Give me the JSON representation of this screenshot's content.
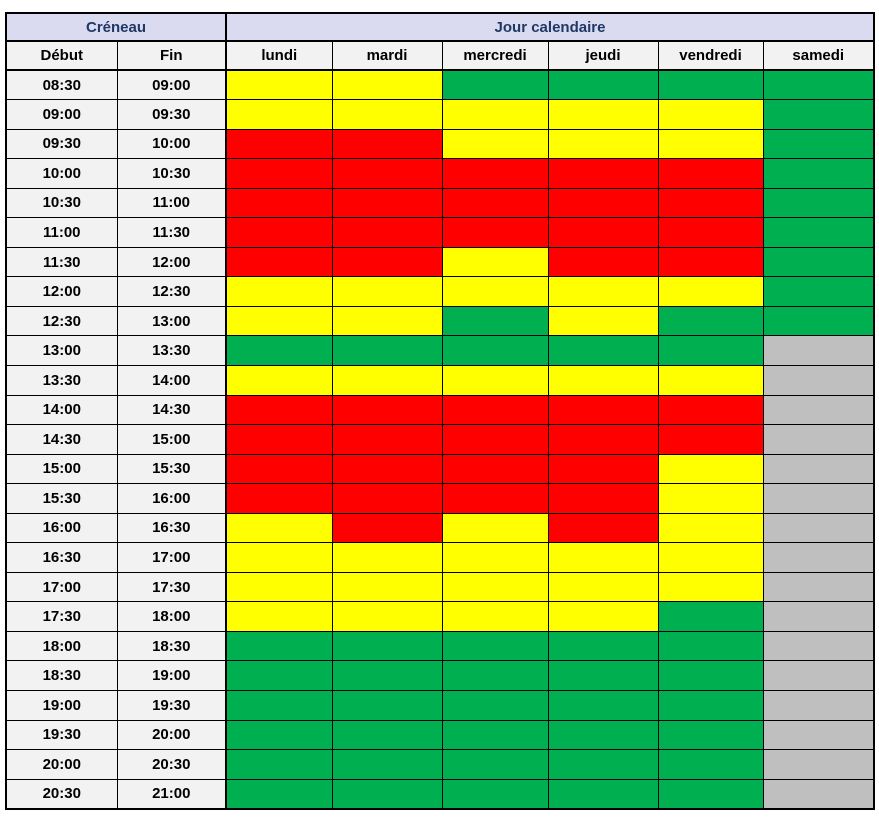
{
  "header": {
    "creneau": "Créneau",
    "jour_calendaire": "Jour calendaire",
    "debut": "Début",
    "fin": "Fin"
  },
  "chart_data": {
    "type": "heatmap",
    "title": "",
    "x_categories": [
      "lundi",
      "mardi",
      "mercredi",
      "jeudi",
      "vendredi",
      "samedi"
    ],
    "y_axis_columns": [
      "Début",
      "Fin"
    ],
    "legend_position": "none",
    "grid": true,
    "color_scale": {
      "red": "#FF0000",
      "yellow": "#FFFF00",
      "green": "#00B050",
      "gray": "#BFBFBF"
    },
    "rows": [
      {
        "debut": "08:30",
        "fin": "09:00",
        "values": [
          "yellow",
          "yellow",
          "green",
          "green",
          "green",
          "green"
        ]
      },
      {
        "debut": "09:00",
        "fin": "09:30",
        "values": [
          "yellow",
          "yellow",
          "yellow",
          "yellow",
          "yellow",
          "green"
        ]
      },
      {
        "debut": "09:30",
        "fin": "10:00",
        "values": [
          "red",
          "red",
          "yellow",
          "yellow",
          "yellow",
          "green"
        ]
      },
      {
        "debut": "10:00",
        "fin": "10:30",
        "values": [
          "red",
          "red",
          "red",
          "red",
          "red",
          "green"
        ]
      },
      {
        "debut": "10:30",
        "fin": "11:00",
        "values": [
          "red",
          "red",
          "red",
          "red",
          "red",
          "green"
        ]
      },
      {
        "debut": "11:00",
        "fin": "11:30",
        "values": [
          "red",
          "red",
          "red",
          "red",
          "red",
          "green"
        ]
      },
      {
        "debut": "11:30",
        "fin": "12:00",
        "values": [
          "red",
          "red",
          "yellow",
          "red",
          "red",
          "green"
        ]
      },
      {
        "debut": "12:00",
        "fin": "12:30",
        "values": [
          "yellow",
          "yellow",
          "yellow",
          "yellow",
          "yellow",
          "green"
        ]
      },
      {
        "debut": "12:30",
        "fin": "13:00",
        "values": [
          "yellow",
          "yellow",
          "green",
          "yellow",
          "green",
          "green"
        ]
      },
      {
        "debut": "13:00",
        "fin": "13:30",
        "values": [
          "green",
          "green",
          "green",
          "green",
          "green",
          "gray"
        ]
      },
      {
        "debut": "13:30",
        "fin": "14:00",
        "values": [
          "yellow",
          "yellow",
          "yellow",
          "yellow",
          "yellow",
          "gray"
        ]
      },
      {
        "debut": "14:00",
        "fin": "14:30",
        "values": [
          "red",
          "red",
          "red",
          "red",
          "red",
          "gray"
        ]
      },
      {
        "debut": "14:30",
        "fin": "15:00",
        "values": [
          "red",
          "red",
          "red",
          "red",
          "red",
          "gray"
        ]
      },
      {
        "debut": "15:00",
        "fin": "15:30",
        "values": [
          "red",
          "red",
          "red",
          "red",
          "yellow",
          "gray"
        ]
      },
      {
        "debut": "15:30",
        "fin": "16:00",
        "values": [
          "red",
          "red",
          "red",
          "red",
          "yellow",
          "gray"
        ]
      },
      {
        "debut": "16:00",
        "fin": "16:30",
        "values": [
          "yellow",
          "red",
          "yellow",
          "red",
          "yellow",
          "gray"
        ]
      },
      {
        "debut": "16:30",
        "fin": "17:00",
        "values": [
          "yellow",
          "yellow",
          "yellow",
          "yellow",
          "yellow",
          "gray"
        ]
      },
      {
        "debut": "17:00",
        "fin": "17:30",
        "values": [
          "yellow",
          "yellow",
          "yellow",
          "yellow",
          "yellow",
          "gray"
        ]
      },
      {
        "debut": "17:30",
        "fin": "18:00",
        "values": [
          "yellow",
          "yellow",
          "yellow",
          "yellow",
          "green",
          "gray"
        ]
      },
      {
        "debut": "18:00",
        "fin": "18:30",
        "values": [
          "green",
          "green",
          "green",
          "green",
          "green",
          "gray"
        ]
      },
      {
        "debut": "18:30",
        "fin": "19:00",
        "values": [
          "green",
          "green",
          "green",
          "green",
          "green",
          "gray"
        ]
      },
      {
        "debut": "19:00",
        "fin": "19:30",
        "values": [
          "green",
          "green",
          "green",
          "green",
          "green",
          "gray"
        ]
      },
      {
        "debut": "19:30",
        "fin": "20:00",
        "values": [
          "green",
          "green",
          "green",
          "green",
          "green",
          "gray"
        ]
      },
      {
        "debut": "20:00",
        "fin": "20:30",
        "values": [
          "green",
          "green",
          "green",
          "green",
          "green",
          "gray"
        ]
      },
      {
        "debut": "20:30",
        "fin": "21:00",
        "values": [
          "green",
          "green",
          "green",
          "green",
          "green",
          "gray"
        ]
      }
    ]
  },
  "style": {
    "group_header_bg": "#DADBF1",
    "group_header_text": "#1F3864",
    "label_cell_bg": "#F2F2F2",
    "grid_border": "#000000"
  }
}
